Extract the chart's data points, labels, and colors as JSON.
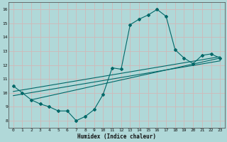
{
  "title": "",
  "xlabel": "Humidex (Indice chaleur)",
  "ylabel": "",
  "bg_color": "#b0d8d8",
  "grid_color": "#d0b8b8",
  "line_color": "#006868",
  "xlim": [
    -0.5,
    23.5
  ],
  "ylim": [
    7.5,
    16.5
  ],
  "xticks": [
    0,
    1,
    2,
    3,
    4,
    5,
    6,
    7,
    8,
    9,
    10,
    11,
    12,
    13,
    14,
    15,
    16,
    17,
    18,
    19,
    20,
    21,
    22,
    23
  ],
  "yticks": [
    8,
    9,
    10,
    11,
    12,
    13,
    14,
    15,
    16
  ],
  "curve1_x": [
    0,
    1,
    2,
    3,
    4,
    5,
    6,
    7,
    8,
    9,
    10,
    11,
    12,
    13,
    14,
    15,
    16,
    17,
    18,
    19,
    20,
    21,
    22,
    23
  ],
  "curve1_y": [
    10.5,
    10.0,
    9.5,
    9.2,
    9.0,
    8.7,
    8.7,
    8.0,
    8.3,
    8.8,
    9.9,
    11.8,
    11.7,
    14.9,
    15.3,
    15.6,
    16.0,
    15.5,
    13.1,
    12.5,
    12.1,
    12.7,
    12.8,
    12.5
  ],
  "line2_x": [
    0,
    23
  ],
  "line2_y": [
    10.1,
    12.6
  ],
  "line3_x": [
    0,
    23
  ],
  "line3_y": [
    9.8,
    12.3
  ],
  "line4_x": [
    2,
    23
  ],
  "line4_y": [
    9.5,
    12.5
  ]
}
